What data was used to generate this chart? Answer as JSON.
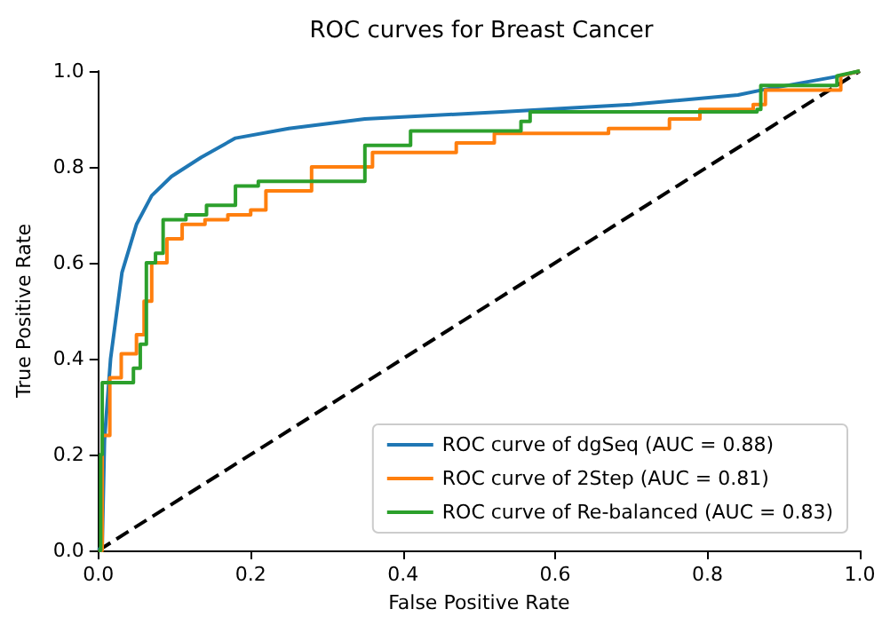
{
  "chart_data": {
    "type": "line",
    "title": "ROC curves for Breast Cancer",
    "xlabel": "False Positive Rate",
    "ylabel": "True Positive Rate",
    "xlim": [
      0,
      1
    ],
    "ylim": [
      0,
      1
    ],
    "xticks": [
      {
        "value": 0,
        "label": "0.0"
      },
      {
        "value": 0.2,
        "label": "0.2"
      },
      {
        "value": 0.4,
        "label": "0.4"
      },
      {
        "value": 0.6,
        "label": "0.6"
      },
      {
        "value": 0.8,
        "label": "0.8"
      },
      {
        "value": 1,
        "label": "1.0"
      }
    ],
    "yticks": [
      {
        "value": 0,
        "label": "0.0"
      },
      {
        "value": 0.2,
        "label": "0.2"
      },
      {
        "value": 0.4,
        "label": "0.4"
      },
      {
        "value": 0.6,
        "label": "0.6"
      },
      {
        "value": 0.8,
        "label": "0.8"
      },
      {
        "value": 1,
        "label": "1.0"
      }
    ],
    "grid": false,
    "legend": "bottom right",
    "marker": "none",
    "line_style": "solid",
    "series": [
      {
        "name": "ROC curve of dgSeq (AUC = 0.88)",
        "color": "#1f77b4",
        "x": [
          0,
          0.005,
          0.008,
          0.016,
          0.031,
          0.05,
          0.07,
          0.096,
          0.135,
          0.18,
          0.25,
          0.35,
          0.53,
          0.7,
          0.84,
          0.87,
          0.975,
          1
        ],
        "values": [
          0,
          0.01,
          0.23,
          0.4,
          0.58,
          0.68,
          0.74,
          0.78,
          0.82,
          0.86,
          0.88,
          0.9,
          0.915,
          0.93,
          0.95,
          0.96,
          0.99,
          1
        ]
      },
      {
        "name": "ROC curve of 2Step (AUC = 0.81)",
        "color": "#ff7f0e",
        "x": [
          0,
          0.005,
          0.005,
          0.015,
          0.015,
          0.03,
          0.03,
          0.05,
          0.05,
          0.06,
          0.06,
          0.07,
          0.07,
          0.09,
          0.09,
          0.11,
          0.11,
          0.14,
          0.14,
          0.17,
          0.17,
          0.2,
          0.2,
          0.22,
          0.22,
          0.28,
          0.28,
          0.36,
          0.36,
          0.47,
          0.47,
          0.52,
          0.52,
          0.67,
          0.67,
          0.75,
          0.75,
          0.79,
          0.79,
          0.86,
          0.86,
          0.876,
          0.876,
          0.975,
          0.975,
          1
        ],
        "values": [
          0,
          0,
          0.24,
          0.24,
          0.36,
          0.36,
          0.41,
          0.41,
          0.45,
          0.45,
          0.52,
          0.52,
          0.6,
          0.6,
          0.65,
          0.65,
          0.68,
          0.68,
          0.69,
          0.69,
          0.7,
          0.7,
          0.71,
          0.71,
          0.75,
          0.75,
          0.8,
          0.8,
          0.83,
          0.83,
          0.85,
          0.85,
          0.87,
          0.87,
          0.88,
          0.88,
          0.9,
          0.9,
          0.92,
          0.92,
          0.93,
          0.93,
          0.96,
          0.96,
          0.99,
          1
        ]
      },
      {
        "name": "ROC curve of Re-balanced (AUC = 0.83)",
        "color": "#2ca02c",
        "x": [
          0,
          0.003,
          0.003,
          0.005,
          0.005,
          0.046,
          0.046,
          0.055,
          0.055,
          0.063,
          0.063,
          0.075,
          0.075,
          0.085,
          0.085,
          0.115,
          0.115,
          0.142,
          0.142,
          0.18,
          0.18,
          0.21,
          0.21,
          0.35,
          0.35,
          0.41,
          0.41,
          0.555,
          0.555,
          0.567,
          0.567,
          0.865,
          0.865,
          0.87,
          0.87,
          0.97,
          0.97,
          1
        ],
        "values": [
          0,
          0,
          0.2,
          0.2,
          0.35,
          0.35,
          0.38,
          0.38,
          0.43,
          0.43,
          0.6,
          0.6,
          0.62,
          0.62,
          0.69,
          0.69,
          0.7,
          0.7,
          0.72,
          0.72,
          0.76,
          0.76,
          0.77,
          0.77,
          0.845,
          0.845,
          0.875,
          0.875,
          0.895,
          0.895,
          0.915,
          0.915,
          0.92,
          0.92,
          0.97,
          0.97,
          0.99,
          1
        ]
      },
      {
        "color": "#000000",
        "line_style": "dashed",
        "x": [
          0,
          1
        ],
        "values": [
          0,
          1
        ]
      }
    ]
  }
}
